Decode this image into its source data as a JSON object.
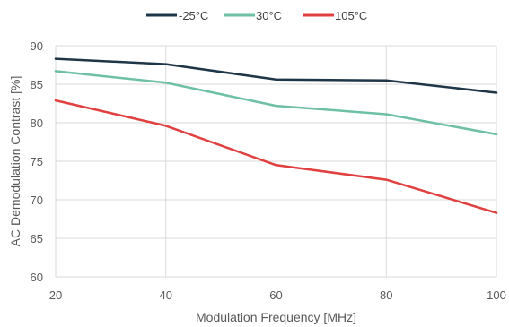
{
  "chart_data": {
    "type": "line",
    "title": "",
    "xlabel": "Modulation Frequency [MHz]",
    "ylabel": "AC Demodulation Contrast [%]",
    "x": [
      20,
      40,
      60,
      80,
      100
    ],
    "xlim": [
      20,
      100
    ],
    "ylim": [
      60,
      90
    ],
    "xticks": [
      "20",
      "40",
      "60",
      "80",
      "100"
    ],
    "yticks": [
      "60",
      "65",
      "70",
      "75",
      "80",
      "85",
      "90"
    ],
    "grid": true,
    "legend_position": "top-center",
    "series": [
      {
        "name": "-25°C",
        "color": "#1f3548",
        "values": [
          88.3,
          87.6,
          85.6,
          85.5,
          83.9
        ]
      },
      {
        "name": "30°C",
        "color": "#6dbfa5",
        "values": [
          86.7,
          85.2,
          82.2,
          81.1,
          78.5
        ]
      },
      {
        "name": "105°C",
        "color": "#e0403f",
        "values": [
          82.9,
          79.6,
          74.5,
          72.6,
          68.3
        ]
      }
    ]
  }
}
